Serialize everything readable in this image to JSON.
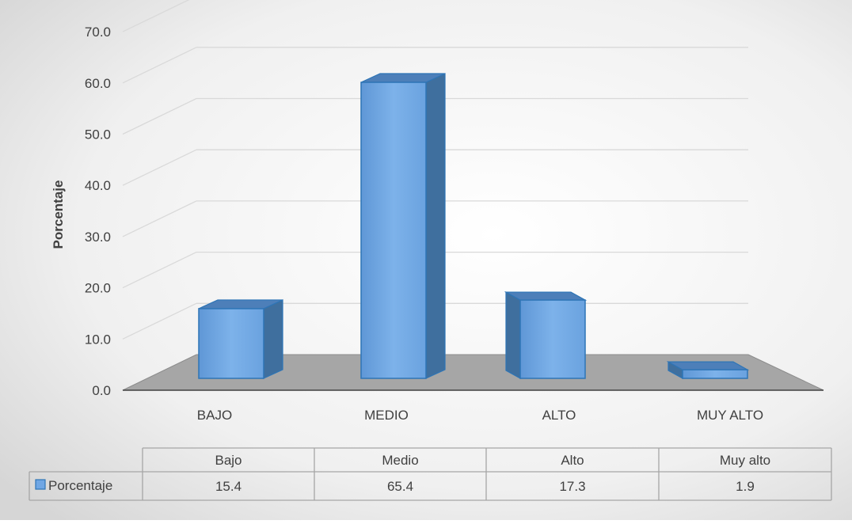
{
  "chart_data": {
    "type": "bar",
    "categories": [
      "BAJO",
      "MEDIO",
      "ALTO",
      "MUY ALTO"
    ],
    "table_categories": [
      "Bajo",
      "Medio",
      "Alto",
      "Muy alto"
    ],
    "series": [
      {
        "name": "Porcentaje",
        "values": [
          15.4,
          65.4,
          17.3,
          1.9
        ]
      }
    ],
    "value_labels": [
      "15.4",
      "65.4",
      "17.3",
      "1.9"
    ],
    "title": "",
    "xlabel": "",
    "ylabel": "Porcentaje",
    "ylim": [
      0,
      70
    ],
    "yticks": [
      "0.0",
      "10.0",
      "20.0",
      "30.0",
      "40.0",
      "50.0",
      "60.0",
      "70.0"
    ],
    "grid": true,
    "legend": "data-table",
    "three_d": true,
    "colors": {
      "bar_front": "#6fa6e4",
      "bar_side": "#3f6f9e",
      "bar_top": "#4d7fb9",
      "bar_edge": "#2e75b6",
      "floor": "#a6a6a6",
      "gridline": "#d9d9d9"
    }
  }
}
